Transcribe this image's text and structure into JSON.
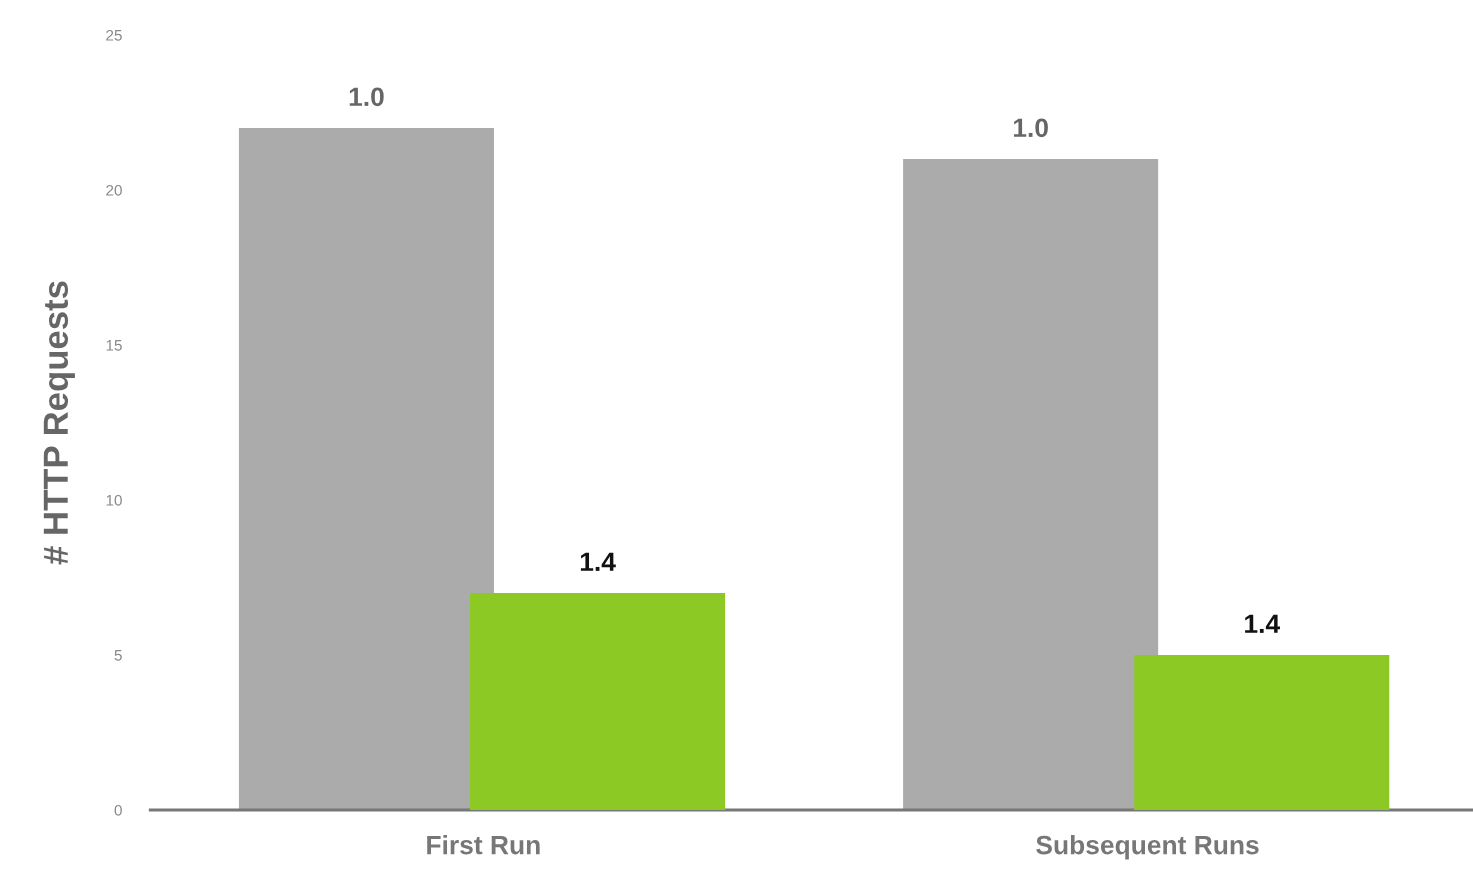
{
  "chart_data": {
    "type": "bar",
    "ylabel": "# HTTP Requests",
    "categories": [
      "First Run",
      "Subsequent Runs"
    ],
    "series": [
      {
        "color": "#ababab",
        "values": [
          22,
          21
        ]
      },
      {
        "color": "#8cc924",
        "values": [
          7,
          5
        ]
      }
    ],
    "annotations": [
      "1.0",
      "1.0",
      "1.4",
      "1.4"
    ],
    "ylim": [
      0,
      25
    ],
    "yticks": [
      0,
      5,
      10,
      15,
      20,
      25
    ],
    "grid": false,
    "legend": false
  }
}
